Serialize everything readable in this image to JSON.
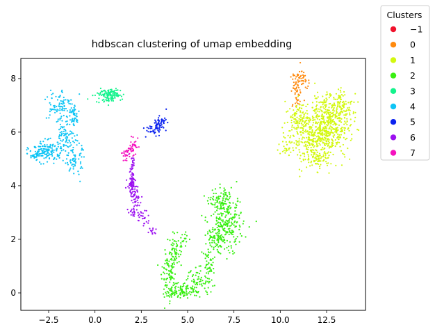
{
  "chart_data": {
    "type": "scatter",
    "title": "hdbscan clustering of umap embedding",
    "xlabel": "",
    "ylabel": "",
    "xlim": [
      -4.0,
      14.6
    ],
    "ylim": [
      -0.65,
      8.75
    ],
    "x_ticks": [
      -2.5,
      0.0,
      2.5,
      5.0,
      7.5,
      10.0,
      12.5
    ],
    "x_tick_labels": [
      "−2.5",
      "0.0",
      "2.5",
      "5.0",
      "7.5",
      "10.0",
      "12.5"
    ],
    "y_ticks": [
      0,
      2,
      4,
      6,
      8
    ],
    "y_tick_labels": [
      "0",
      "2",
      "4",
      "6",
      "8"
    ],
    "grid": false,
    "legend": {
      "title": "Clusters",
      "placement": "outside-top-right",
      "entries": [
        {
          "label": "−1",
          "color": "#f0122c"
        },
        {
          "label": "0",
          "color": "#ff8a0e"
        },
        {
          "label": "1",
          "color": "#d3f80f"
        },
        {
          "label": "2",
          "color": "#39ef12"
        },
        {
          "label": "3",
          "color": "#13f38c"
        },
        {
          "label": "4",
          "color": "#0ec4f5"
        },
        {
          "label": "5",
          "color": "#0b22ef"
        },
        {
          "label": "6",
          "color": "#9c10f0"
        },
        {
          "label": "7",
          "color": "#f512bf"
        }
      ]
    },
    "series": [
      {
        "name": "−1",
        "color": "#f0122c",
        "regions": []
      },
      {
        "name": "0",
        "color": "#ff8a0e",
        "regions": [
          {
            "cx": 10.9,
            "cy": 7.55,
            "sx": 0.18,
            "sy": 0.35,
            "n": 60
          },
          {
            "cx": 11.2,
            "cy": 7.95,
            "sx": 0.15,
            "sy": 0.15,
            "n": 30
          }
        ]
      },
      {
        "name": "1",
        "color": "#d3f80f",
        "regions": [
          {
            "cx": 12.6,
            "cy": 6.6,
            "sx": 0.6,
            "sy": 0.45,
            "n": 320
          },
          {
            "cx": 11.7,
            "cy": 5.7,
            "sx": 0.55,
            "sy": 0.45,
            "n": 260
          },
          {
            "cx": 12.8,
            "cy": 5.8,
            "sx": 0.5,
            "sy": 0.4,
            "n": 140
          },
          {
            "cx": 11.0,
            "cy": 6.5,
            "sx": 0.35,
            "sy": 0.3,
            "n": 90
          },
          {
            "cx": 12.0,
            "cy": 5.0,
            "sx": 0.3,
            "sy": 0.15,
            "n": 50
          },
          {
            "cx": 10.4,
            "cy": 5.5,
            "sx": 0.25,
            "sy": 0.2,
            "n": 30
          },
          {
            "cx": 13.3,
            "cy": 7.0,
            "sx": 0.3,
            "sy": 0.25,
            "n": 60
          }
        ]
      },
      {
        "name": "2",
        "color": "#39ef12",
        "regions": [
          {
            "cx": 6.8,
            "cy": 3.4,
            "sx": 0.3,
            "sy": 0.25,
            "n": 90
          },
          {
            "cx": 7.1,
            "cy": 2.5,
            "sx": 0.45,
            "sy": 0.5,
            "n": 230
          },
          {
            "cx": 6.5,
            "cy": 1.9,
            "sx": 0.3,
            "sy": 0.25,
            "n": 60
          },
          {
            "cx": 6.1,
            "cy": 1.0,
            "sx": 0.15,
            "sy": 0.35,
            "n": 50
          },
          {
            "cx": 5.6,
            "cy": 0.4,
            "sx": 0.35,
            "sy": 0.25,
            "n": 60
          },
          {
            "cx": 4.8,
            "cy": 0.1,
            "sx": 0.35,
            "sy": 0.15,
            "n": 90
          },
          {
            "cx": 4.0,
            "cy": 0.5,
            "sx": 0.2,
            "sy": 0.45,
            "n": 100
          },
          {
            "cx": 4.3,
            "cy": 1.5,
            "sx": 0.2,
            "sy": 0.3,
            "n": 60
          },
          {
            "cx": 4.8,
            "cy": 2.0,
            "sx": 0.15,
            "sy": 0.2,
            "n": 20
          }
        ]
      },
      {
        "name": "3",
        "color": "#13f38c",
        "regions": [
          {
            "cx": 0.7,
            "cy": 7.35,
            "sx": 0.35,
            "sy": 0.12,
            "n": 100
          },
          {
            "cx": 1.0,
            "cy": 7.5,
            "sx": 0.2,
            "sy": 0.08,
            "n": 30
          }
        ]
      },
      {
        "name": "4",
        "color": "#0ec4f5",
        "regions": [
          {
            "cx": -2.0,
            "cy": 7.0,
            "sx": 0.35,
            "sy": 0.35,
            "n": 90
          },
          {
            "cx": -1.2,
            "cy": 6.6,
            "sx": 0.2,
            "sy": 0.2,
            "n": 50
          },
          {
            "cx": -1.5,
            "cy": 5.8,
            "sx": 0.25,
            "sy": 0.35,
            "n": 70
          },
          {
            "cx": -1.1,
            "cy": 5.0,
            "sx": 0.2,
            "sy": 0.3,
            "n": 70
          },
          {
            "cx": -2.6,
            "cy": 5.3,
            "sx": 0.45,
            "sy": 0.2,
            "n": 140
          },
          {
            "cx": -3.2,
            "cy": 5.15,
            "sx": 0.15,
            "sy": 0.12,
            "n": 30
          }
        ]
      },
      {
        "name": "5",
        "color": "#0b22ef",
        "regions": [
          {
            "cx": 3.5,
            "cy": 6.3,
            "sx": 0.18,
            "sy": 0.13,
            "n": 60
          },
          {
            "cx": 3.0,
            "cy": 6.1,
            "sx": 0.2,
            "sy": 0.1,
            "n": 25
          }
        ]
      },
      {
        "name": "6",
        "color": "#9c10f0",
        "regions": [
          {
            "cx": 2.0,
            "cy": 4.0,
            "sx": 0.12,
            "sy": 0.2,
            "n": 70
          },
          {
            "cx": 2.2,
            "cy": 3.5,
            "sx": 0.12,
            "sy": 0.25,
            "n": 40
          },
          {
            "cx": 2.0,
            "cy": 4.6,
            "sx": 0.08,
            "sy": 0.25,
            "n": 30
          },
          {
            "cx": 2.6,
            "cy": 2.8,
            "sx": 0.15,
            "sy": 0.15,
            "n": 25
          },
          {
            "cx": 2.0,
            "cy": 3.0,
            "sx": 0.1,
            "sy": 0.1,
            "n": 15
          },
          {
            "cx": 3.1,
            "cy": 2.3,
            "sx": 0.12,
            "sy": 0.06,
            "n": 12
          }
        ]
      },
      {
        "name": "7",
        "color": "#f512bf",
        "regions": [
          {
            "cx": 2.0,
            "cy": 5.45,
            "sx": 0.15,
            "sy": 0.15,
            "n": 40
          },
          {
            "cx": 1.6,
            "cy": 5.15,
            "sx": 0.12,
            "sy": 0.1,
            "n": 20
          }
        ]
      }
    ]
  }
}
